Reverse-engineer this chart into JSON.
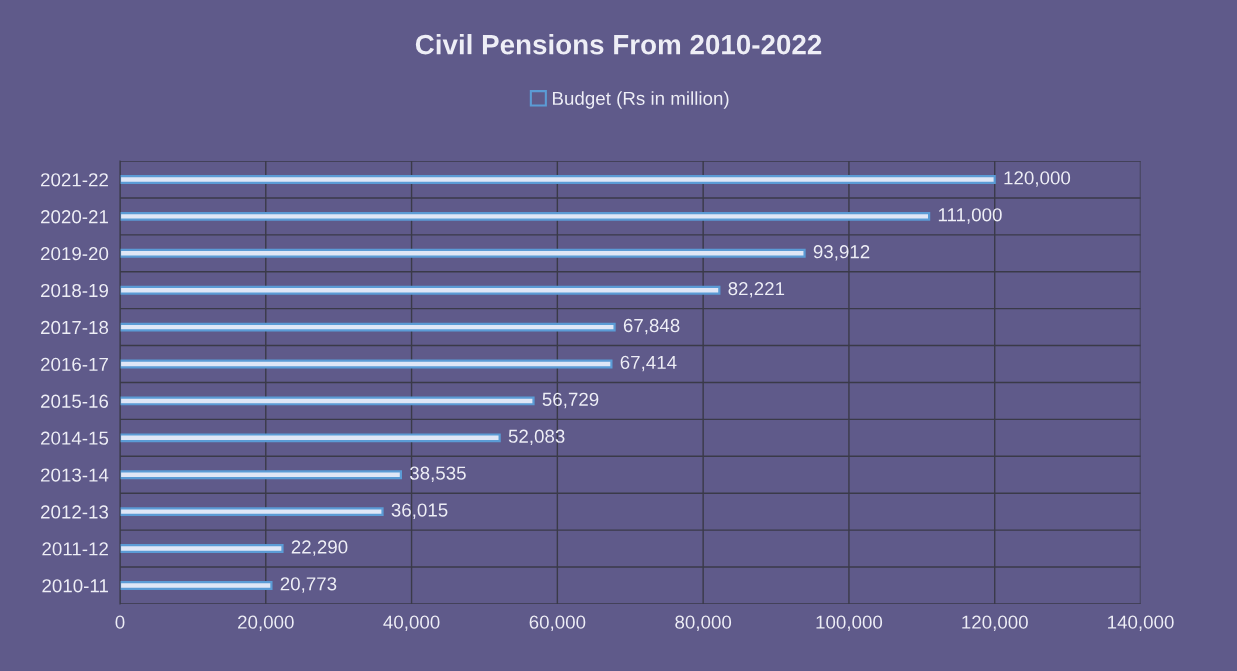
{
  "chart_data": {
    "type": "bar",
    "orientation": "horizontal",
    "title": "Civil Pensions From 2010-2022",
    "categories": [
      "2021-22",
      "2020-21",
      "2019-20",
      "2018-19",
      "2017-18",
      "2016-17",
      "2015-16",
      "2014-15",
      "2013-14",
      "2012-13",
      "2011-12",
      "2010-11"
    ],
    "series": [
      {
        "name": "Budget (Rs in million)",
        "color": "#5b9bd5",
        "values": [
          120000,
          111000,
          93912,
          82221,
          67848,
          67414,
          56729,
          52083,
          38535,
          36015,
          22290,
          20773
        ]
      }
    ],
    "value_labels": [
      "120,000",
      "111,000",
      "93,912",
      "82,221",
      "67,848",
      "67,414",
      "56,729",
      "52,083",
      "38,535",
      "36,015",
      "22,290",
      "20,773"
    ],
    "xlim": [
      0,
      140000
    ],
    "xticks": [
      0,
      {
        "value": 20000,
        "label": "20,000"
      },
      {
        "value": 40000,
        "label": "40,000"
      },
      {
        "value": 60000,
        "label": "60,000"
      },
      {
        "value": 80000,
        "label": "80,000"
      },
      {
        "value": 100000,
        "label": "100,000"
      },
      {
        "value": 120000,
        "label": "120,000"
      },
      {
        "value": 140000,
        "label": "140,000"
      }
    ],
    "grid": true,
    "legend": "top"
  }
}
